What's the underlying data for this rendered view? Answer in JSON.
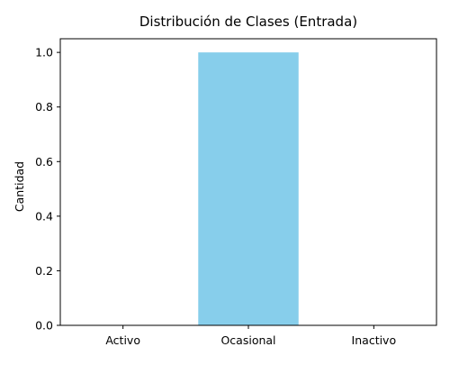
{
  "chart_data": {
    "type": "bar",
    "title": "Distribución de Clases (Entrada)",
    "xlabel": "",
    "ylabel": "Cantidad",
    "categories": [
      "Activo",
      "Ocasional",
      "Inactivo"
    ],
    "values": [
      0,
      1,
      0
    ],
    "ylim": [
      0,
      1.05
    ],
    "yticks": [
      "0.0",
      "0.2",
      "0.4",
      "0.6",
      "0.8",
      "1.0"
    ],
    "bar_color": "#87ceeb",
    "grid": false,
    "legend": "none"
  }
}
